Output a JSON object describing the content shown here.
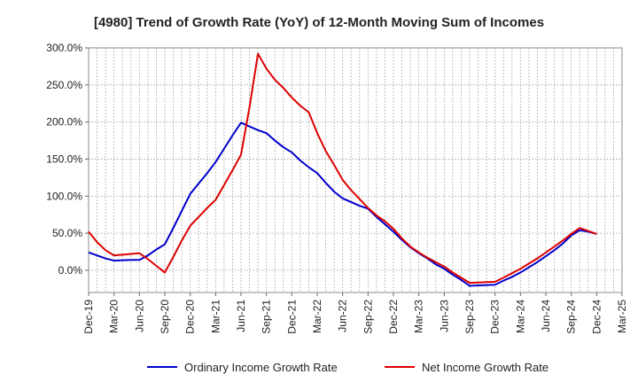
{
  "chart_data": {
    "type": "line",
    "title": "[4980]  Trend of Growth Rate (YoY) of 12-Month Moving Sum of Incomes",
    "xlabel": "",
    "ylabel": "",
    "ylim": [
      -30,
      300
    ],
    "yticks": [
      0,
      50,
      100,
      150,
      200,
      250,
      300
    ],
    "ytick_labels": [
      "0.0%",
      "50.0%",
      "100.0%",
      "150.0%",
      "200.0%",
      "250.0%",
      "300.0%"
    ],
    "xtick_labels": [
      "Dec-19",
      "Mar-20",
      "Jun-20",
      "Sep-20",
      "Dec-20",
      "Mar-21",
      "Jun-21",
      "Sep-21",
      "Dec-21",
      "Mar-22",
      "Jun-22",
      "Sep-22",
      "Dec-22",
      "Mar-23",
      "Jun-23",
      "Sep-23",
      "Dec-23",
      "Mar-24",
      "Jun-24",
      "Sep-24",
      "Dec-24",
      "Mar-25"
    ],
    "x": [
      "Dec-19",
      "Jan-20",
      "Feb-20",
      "Mar-20",
      "Apr-20",
      "May-20",
      "Jun-20",
      "Jul-20",
      "Aug-20",
      "Sep-20",
      "Oct-20",
      "Nov-20",
      "Dec-20",
      "Jan-21",
      "Feb-21",
      "Mar-21",
      "Apr-21",
      "May-21",
      "Jun-21",
      "Jul-21",
      "Aug-21",
      "Sep-21",
      "Oct-21",
      "Nov-21",
      "Dec-21",
      "Jan-22",
      "Feb-22",
      "Mar-22",
      "Apr-22",
      "May-22",
      "Jun-22",
      "Jul-22",
      "Aug-22",
      "Sep-22",
      "Oct-22",
      "Nov-22",
      "Dec-22",
      "Jan-23",
      "Feb-23",
      "Mar-23",
      "Apr-23",
      "May-23",
      "Jun-23",
      "Jul-23",
      "Aug-23",
      "Sep-23",
      "Oct-23",
      "Nov-23",
      "Dec-23",
      "Jan-24",
      "Feb-24",
      "Mar-24",
      "Apr-24",
      "May-24",
      "Jun-24",
      "Jul-24",
      "Aug-24",
      "Sep-24",
      "Oct-24",
      "Nov-24",
      "Dec-24"
    ],
    "grid": true,
    "legend_position": "bottom",
    "series": [
      {
        "name": "Ordinary Income Growth Rate",
        "color": "#0000cc",
        "values": [
          24,
          20,
          16,
          13,
          13.5,
          14,
          14,
          20,
          28,
          35,
          57,
          80,
          103,
          117,
          131,
          146,
          164,
          182,
          199,
          194,
          189,
          185,
          175,
          166,
          159,
          148,
          139,
          131,
          118,
          106,
          97,
          92,
          87,
          83,
          72,
          62,
          52,
          41,
          31,
          23,
          16,
          8,
          2,
          -6,
          -13,
          -21,
          -20.5,
          -20,
          -19.5,
          -14,
          -9,
          -3,
          4,
          11,
          19,
          27,
          36,
          47,
          54,
          52,
          49
        ]
      },
      {
        "name": "Net Income Growth Rate",
        "color": "#dd0000",
        "values": [
          52,
          38,
          27,
          20,
          21,
          22,
          23,
          15,
          6,
          -3,
          18,
          40,
          60,
          72,
          84,
          95,
          115,
          135,
          156,
          220,
          292,
          272,
          257,
          246,
          233,
          222,
          213,
          185,
          161,
          142,
          122,
          108,
          96,
          84,
          74,
          66,
          56,
          43,
          32,
          24,
          17,
          11,
          5,
          -3,
          -10,
          -17,
          -16.5,
          -16,
          -15.5,
          -10,
          -4,
          2,
          9,
          16,
          24,
          32,
          40,
          49,
          57,
          53,
          49
        ]
      }
    ]
  }
}
